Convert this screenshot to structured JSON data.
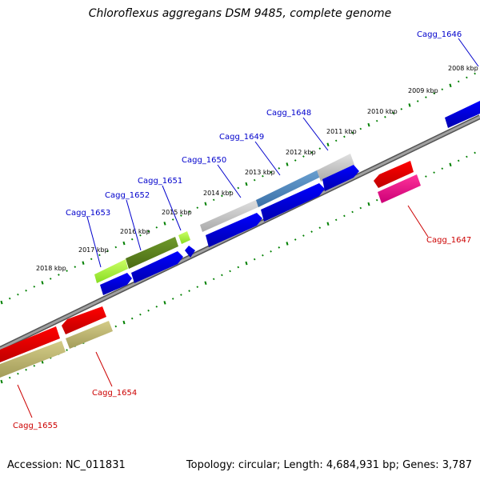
{
  "title": "Chloroflexus aggregans DSM 9485, complete genome",
  "footer": {
    "accession": "Accession: NC_011831",
    "summary": "Topology: circular; Length: 4,684,931 bp; Genes: 3,787"
  },
  "colors": {
    "backbone": "#808080",
    "tick": "#008000",
    "label_forward": "#0000cc",
    "label_reverse": "#cc0000",
    "cds": "#0000ff"
  },
  "kbp_labels": [
    "2008 kbp",
    "2009 kbp",
    "2010 kbp",
    "2011 kbp",
    "2012 kbp",
    "2013 kbp",
    "2014 kbp",
    "2015 kbp",
    "2016 kbp",
    "2017 kbp",
    "2018 kbp"
  ],
  "gene_labels": [
    {
      "text": "Cagg_1646",
      "strand": "forward"
    },
    {
      "text": "Cagg_1648",
      "strand": "forward"
    },
    {
      "text": "Cagg_1649",
      "strand": "forward"
    },
    {
      "text": "Cagg_1650",
      "strand": "forward"
    },
    {
      "text": "Cagg_1651",
      "strand": "forward"
    },
    {
      "text": "Cagg_1652",
      "strand": "forward"
    },
    {
      "text": "Cagg_1653",
      "strand": "forward"
    },
    {
      "text": "Cagg_1647",
      "strand": "reverse"
    },
    {
      "text": "Cagg_1654",
      "strand": "reverse"
    },
    {
      "text": "Cagg_1655",
      "strand": "reverse"
    }
  ]
}
